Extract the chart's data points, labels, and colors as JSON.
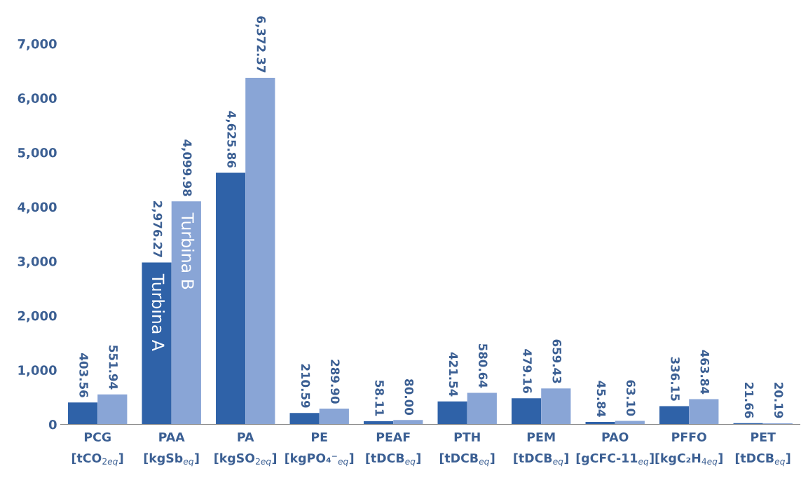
{
  "chart_data": {
    "type": "bar",
    "categories": [
      "PCG\n[tCO$_{2eq}$]",
      "PAA\n[kgSb$_{eq}$]",
      "PA\n[kgSO$_{2eq}$]",
      "PE\n[kgPO₄⁻$_{eq}$]",
      "PEAF\n[tDCB$_{eq}$]",
      "PTH\n[tDCB$_{eq}$]",
      "PEM\n[tDCB$_{eq}$]",
      "PAO\n[gCFC-11$_{eq}$]",
      "PFFO\n[kgC₂H$_{4eq}$]",
      "PET\n[tDCB$_{eq}$]"
    ],
    "series": [
      {
        "name": "Turbina A",
        "color": "#2f62a8",
        "values": [
          403.56,
          2976.27,
          4625.86,
          210.59,
          58.11,
          421.54,
          479.16,
          45.84,
          336.15,
          21.66
        ],
        "value_labels": [
          "403.56",
          "2,976.27",
          "4,625.86",
          "210.59",
          "58.11",
          "421.54",
          "479.16",
          "45.84",
          "336.15",
          "21.66"
        ]
      },
      {
        "name": "Turbina B",
        "color": "#89a5d6",
        "values": [
          551.94,
          4099.98,
          6372.37,
          289.9,
          80.0,
          580.64,
          659.43,
          63.1,
          463.84,
          20.19
        ],
        "value_labels": [
          "551.94",
          "4,099.98",
          "6,372.37",
          "289.90",
          "80.00",
          "580.64",
          "659.43",
          "63.10",
          "463.84",
          "20.19"
        ]
      }
    ],
    "ylim": [
      0,
      7000
    ],
    "yticks": [
      0,
      {
        "value": 1000,
        "label": "1,000"
      },
      {
        "value": 2000,
        "label": "2,000"
      },
      {
        "value": 3000,
        "label": "3,000"
      },
      {
        "value": 4000,
        "label": "4,000"
      },
      {
        "value": 5000,
        "label": "5,000"
      },
      {
        "value": 6000,
        "label": "6,000"
      },
      {
        "value": 7000,
        "label": "7,000"
      }
    ],
    "grid": false,
    "legend": false
  }
}
